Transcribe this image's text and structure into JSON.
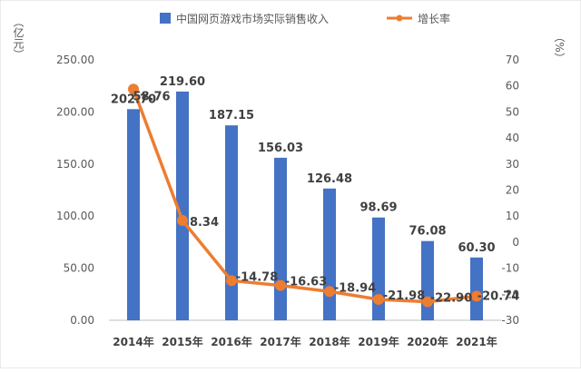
{
  "chart_data": {
    "type": "bar+line",
    "categories": [
      "2014年",
      "2015年",
      "2016年",
      "2017年",
      "2018年",
      "2019年",
      "2020年",
      "2021年"
    ],
    "series": [
      {
        "name": "中国网页游戏市场实际销售收入",
        "type": "bar",
        "axis": "left",
        "color": "#4472C4",
        "values": [
          202.7,
          219.6,
          187.15,
          156.03,
          126.48,
          98.69,
          76.08,
          60.3
        ],
        "labels": [
          "202.70",
          "219.60",
          "187.15",
          "156.03",
          "126.48",
          "98.69",
          "76.08",
          "60.30"
        ]
      },
      {
        "name": "增长率",
        "type": "line",
        "axis": "right",
        "color": "#ED7D31",
        "values": [
          58.76,
          8.34,
          -14.78,
          -16.63,
          -18.94,
          -21.98,
          -22.9,
          -20.74
        ],
        "labels": [
          "58.76",
          "8.34",
          "-14.78",
          "-16.63",
          "-18.94",
          "-21.98",
          "-22.90",
          "-20.74"
        ]
      }
    ],
    "left_axis": {
      "label": "（亿元）",
      "ylim": [
        0,
        250
      ],
      "ticks": [
        "0.00",
        "50.00",
        "100.00",
        "150.00",
        "200.00",
        "250.00"
      ]
    },
    "right_axis": {
      "label": "（%）",
      "ylim": [
        -30,
        70
      ],
      "ticks": [
        "-30",
        "-20",
        "-10",
        "0",
        "10",
        "20",
        "30",
        "40",
        "50",
        "60",
        "70"
      ]
    },
    "legend_position": "top",
    "grid": false
  }
}
